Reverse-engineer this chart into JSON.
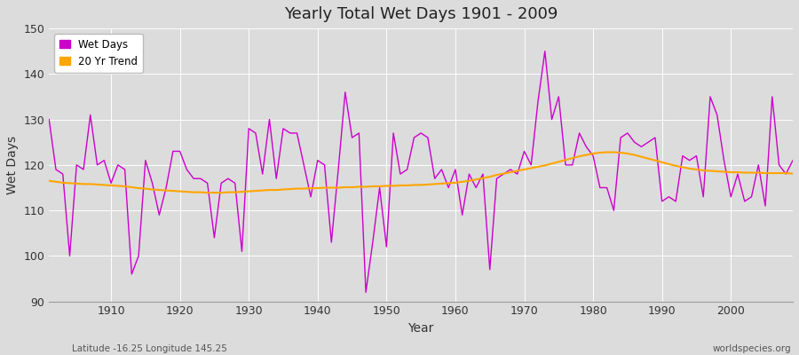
{
  "title": "Yearly Total Wet Days 1901 - 2009",
  "xlabel": "Year",
  "ylabel": "Wet Days",
  "ylim": [
    90,
    150
  ],
  "xlim": [
    1901,
    2009
  ],
  "yticks": [
    90,
    100,
    110,
    120,
    130,
    140,
    150
  ],
  "xticks": [
    1910,
    1920,
    1930,
    1940,
    1950,
    1960,
    1970,
    1980,
    1990,
    2000
  ],
  "wet_days_color": "#CC00CC",
  "trend_color": "#FFA500",
  "background_color": "#DCDCDC",
  "figure_background": "#DCDCDC",
  "subtitle_left": "Latitude -16.25 Longitude 145.25",
  "subtitle_right": "worldspecies.org",
  "wet_days": {
    "1901": 130,
    "1902": 119,
    "1903": 118,
    "1904": 100,
    "1905": 120,
    "1906": 119,
    "1907": 131,
    "1908": 120,
    "1909": 121,
    "1910": 116,
    "1911": 120,
    "1912": 119,
    "1913": 96,
    "1914": 100,
    "1915": 121,
    "1916": 116,
    "1917": 109,
    "1918": 115,
    "1919": 123,
    "1920": 123,
    "1921": 119,
    "1922": 117,
    "1923": 117,
    "1924": 116,
    "1925": 104,
    "1926": 116,
    "1927": 117,
    "1928": 116,
    "1929": 101,
    "1930": 128,
    "1931": 127,
    "1932": 118,
    "1933": 130,
    "1934": 117,
    "1935": 128,
    "1936": 127,
    "1937": 127,
    "1938": 120,
    "1939": 113,
    "1940": 121,
    "1941": 120,
    "1942": 103,
    "1943": 119,
    "1944": 136,
    "1945": 126,
    "1946": 127,
    "1947": 92,
    "1948": 103,
    "1949": 115,
    "1950": 102,
    "1951": 127,
    "1952": 118,
    "1953": 119,
    "1954": 126,
    "1955": 127,
    "1956": 126,
    "1957": 117,
    "1958": 119,
    "1959": 115,
    "1960": 119,
    "1961": 109,
    "1962": 118,
    "1963": 115,
    "1964": 118,
    "1965": 97,
    "1966": 117,
    "1967": 118,
    "1968": 119,
    "1969": 118,
    "1970": 123,
    "1971": 120,
    "1972": 134,
    "1973": 145,
    "1974": 130,
    "1975": 135,
    "1976": 120,
    "1977": 120,
    "1978": 127,
    "1979": 124,
    "1980": 122,
    "1981": 115,
    "1982": 115,
    "1983": 110,
    "1984": 126,
    "1985": 127,
    "1986": 125,
    "1987": 124,
    "1988": 125,
    "1989": 126,
    "1990": 112,
    "1991": 113,
    "1992": 112,
    "1993": 122,
    "1994": 121,
    "1995": 122,
    "1996": 113,
    "1997": 135,
    "1998": 131,
    "1999": 121,
    "2000": 113,
    "2001": 118,
    "2002": 112,
    "2003": 113,
    "2004": 120,
    "2005": 111,
    "2006": 135,
    "2007": 120,
    "2008": 118,
    "2009": 121
  },
  "trend": {
    "1901": 116.5,
    "1902": 116.3,
    "1903": 116.1,
    "1904": 116.0,
    "1905": 115.9,
    "1906": 115.8,
    "1907": 115.8,
    "1908": 115.7,
    "1909": 115.6,
    "1910": 115.5,
    "1911": 115.4,
    "1912": 115.3,
    "1913": 115.1,
    "1914": 114.9,
    "1915": 114.8,
    "1916": 114.6,
    "1917": 114.5,
    "1918": 114.4,
    "1919": 114.3,
    "1920": 114.2,
    "1921": 114.1,
    "1922": 114.0,
    "1923": 114.0,
    "1924": 113.9,
    "1925": 113.9,
    "1926": 113.9,
    "1927": 114.0,
    "1928": 114.0,
    "1929": 114.1,
    "1930": 114.2,
    "1931": 114.3,
    "1932": 114.4,
    "1933": 114.5,
    "1934": 114.5,
    "1935": 114.6,
    "1936": 114.7,
    "1937": 114.8,
    "1938": 114.8,
    "1939": 114.9,
    "1940": 114.9,
    "1941": 115.0,
    "1942": 115.0,
    "1943": 115.0,
    "1944": 115.1,
    "1945": 115.1,
    "1946": 115.2,
    "1947": 115.2,
    "1948": 115.3,
    "1949": 115.3,
    "1950": 115.4,
    "1951": 115.4,
    "1952": 115.5,
    "1953": 115.5,
    "1954": 115.6,
    "1955": 115.6,
    "1956": 115.7,
    "1957": 115.8,
    "1958": 115.9,
    "1959": 116.0,
    "1960": 116.1,
    "1961": 116.3,
    "1962": 116.5,
    "1963": 116.8,
    "1964": 117.1,
    "1965": 117.4,
    "1966": 117.8,
    "1967": 118.1,
    "1968": 118.4,
    "1969": 118.7,
    "1970": 119.0,
    "1971": 119.3,
    "1972": 119.6,
    "1973": 119.9,
    "1974": 120.3,
    "1975": 120.7,
    "1976": 121.1,
    "1977": 121.5,
    "1978": 121.9,
    "1979": 122.2,
    "1980": 122.5,
    "1981": 122.7,
    "1982": 122.8,
    "1983": 122.8,
    "1984": 122.7,
    "1985": 122.5,
    "1986": 122.2,
    "1987": 121.8,
    "1988": 121.4,
    "1989": 121.0,
    "1990": 120.6,
    "1991": 120.2,
    "1992": 119.8,
    "1993": 119.5,
    "1994": 119.2,
    "1995": 119.0,
    "1996": 118.8,
    "1997": 118.7,
    "1998": 118.6,
    "1999": 118.5,
    "2000": 118.4,
    "2001": 118.4,
    "2002": 118.3,
    "2003": 118.3,
    "2004": 118.3,
    "2005": 118.2,
    "2006": 118.2,
    "2007": 118.2,
    "2008": 118.2,
    "2009": 118.1
  }
}
